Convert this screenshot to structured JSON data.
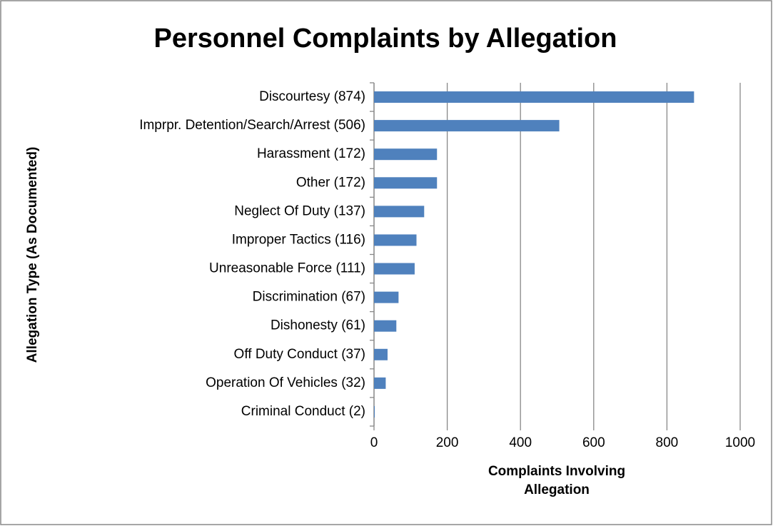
{
  "chart_data": {
    "type": "bar",
    "orientation": "horizontal",
    "title": "Personnel Complaints by Allegation",
    "x_label": "Complaints Involving Allegation",
    "y_label": "Allegation Type (As Documented)",
    "categories": [
      "Discourtesy (874)",
      "Imprpr. Detention/Search/Arrest (506)",
      "Harassment (172)",
      "Other (172)",
      "Neglect Of Duty (137)",
      "Improper Tactics (116)",
      "Unreasonable Force (111)",
      "Discrimination (67)",
      "Dishonesty (61)",
      "Off Duty Conduct (37)",
      "Operation Of Vehicles (32)",
      "Criminal Conduct (2)"
    ],
    "values": [
      874,
      506,
      172,
      172,
      137,
      116,
      111,
      67,
      61,
      37,
      32,
      2
    ],
    "color": "#4f81bd",
    "xlim": [
      0,
      1000
    ],
    "xticks": [
      0,
      200,
      400,
      600,
      800,
      1000
    ],
    "grid": true
  }
}
